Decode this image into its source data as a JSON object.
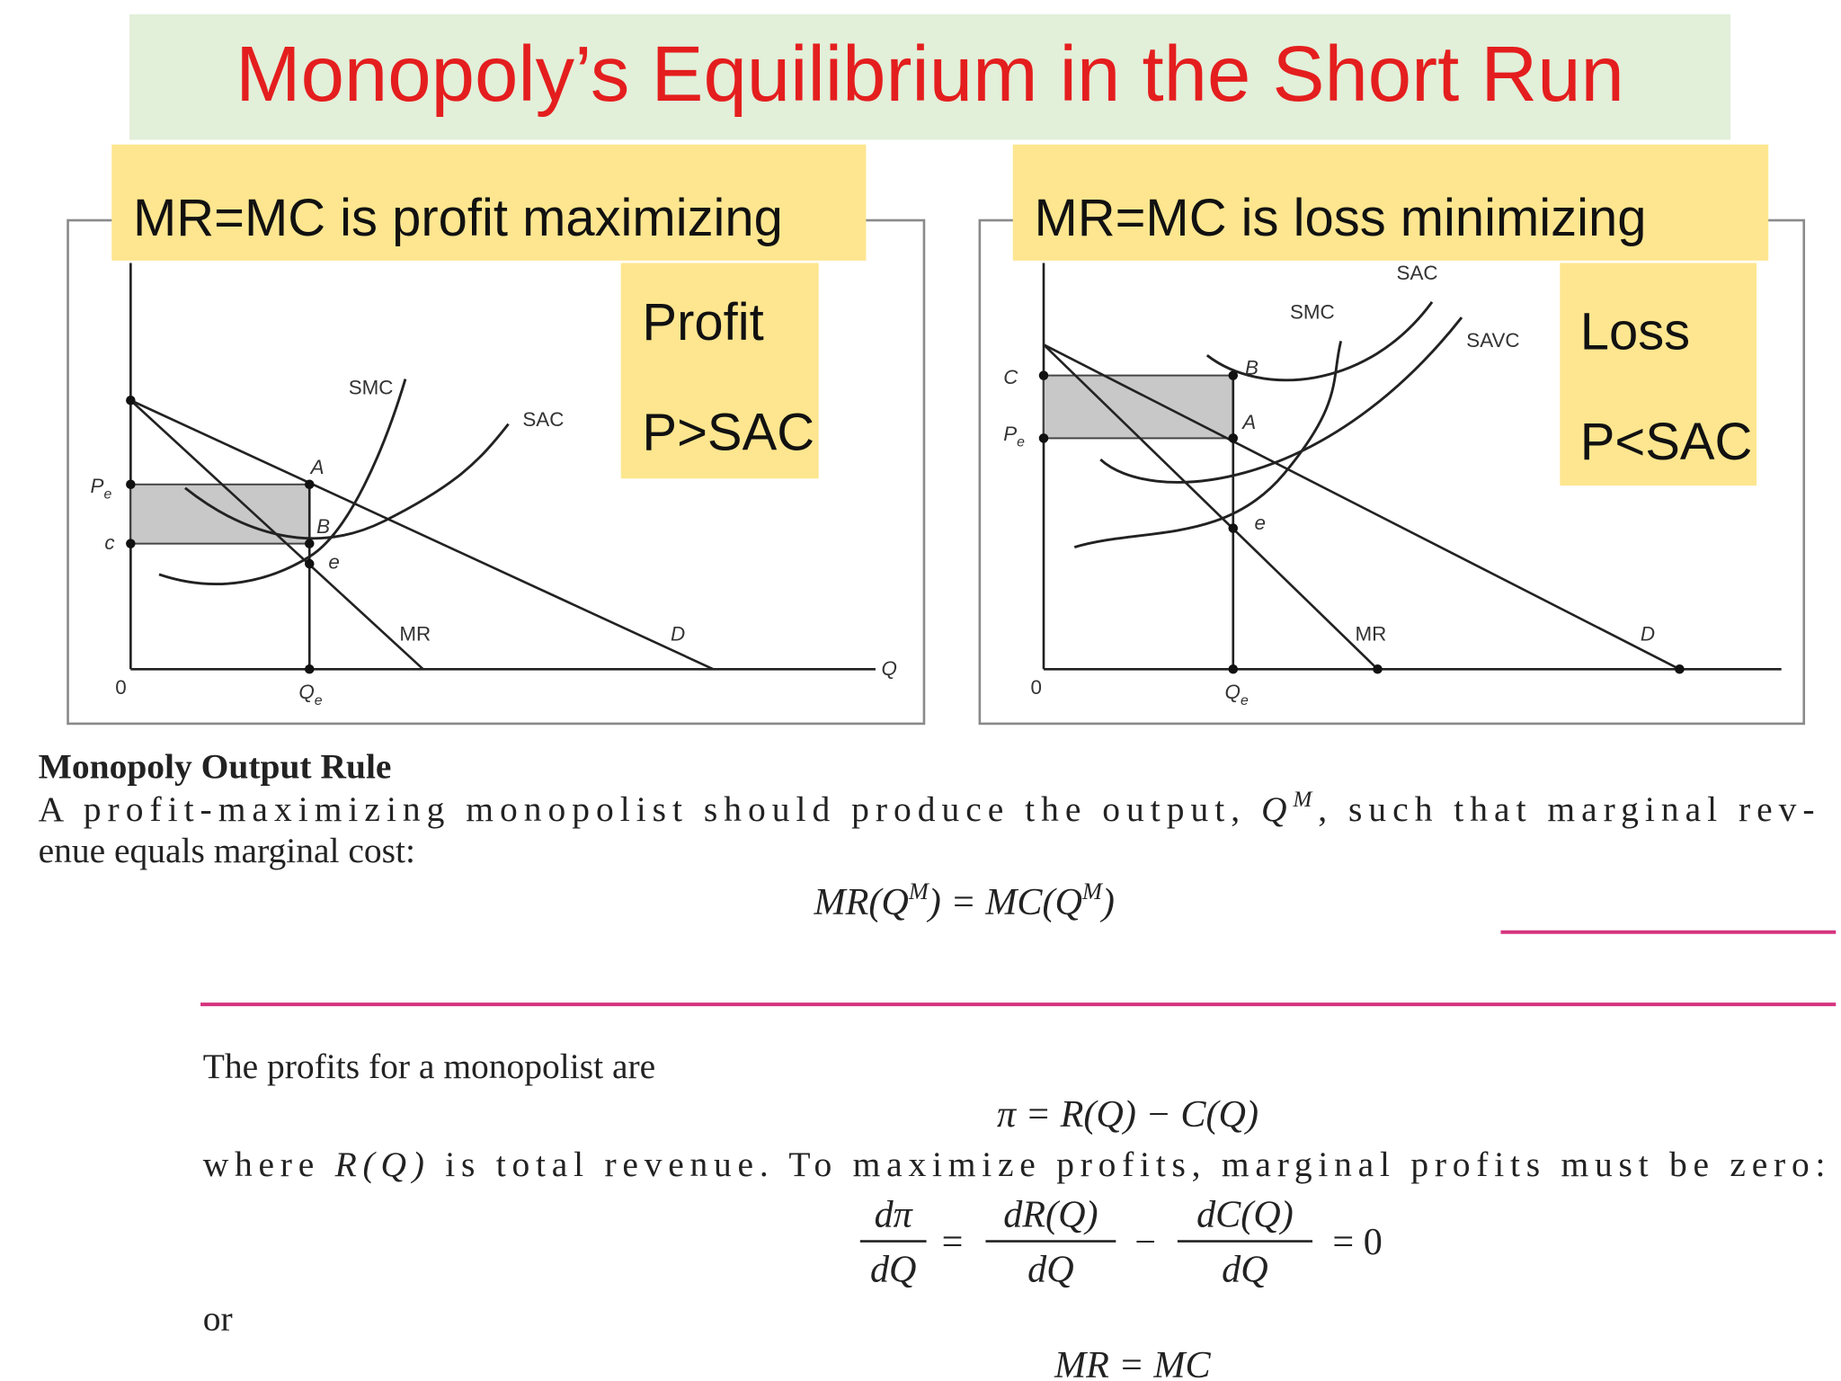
{
  "title": "Monopoly’s Equilibrium in the Short Run",
  "panels": [
    {
      "heading": "MR=MC is profit maximizing",
      "box": [
        "Profit",
        "P>SAC"
      ],
      "labels": [
        "SMC",
        "SAC",
        "A",
        "B",
        "e",
        {
          "text": "P",
          "sub": "e"
        },
        "c",
        "0",
        {
          "text": "Q",
          "sub": "e"
        },
        "Q",
        "MR",
        "D"
      ]
    },
    {
      "heading": "MR=MC is loss minimizing",
      "box": [
        "Loss",
        "P<SAC"
      ],
      "labels": [
        "SAC",
        "SMC",
        "SAVC",
        "B",
        "A",
        "e",
        "C",
        {
          "text": "P",
          "sub": "e"
        },
        "0",
        {
          "text": "Q",
          "sub": "e"
        },
        "MR",
        "D"
      ]
    }
  ],
  "rule": {
    "heading": "Monopoly Output Rule",
    "line1": [
      "A profit-maximizing monopolist should produce the output, ",
      "Q",
      "M",
      ", such that marginal rev-"
    ],
    "line2": "enue equals marginal cost:",
    "equation": [
      "MR(Q",
      "M",
      ") = MC(Q",
      "M",
      ")"
    ]
  },
  "profits": {
    "intro": "The profits for a monopolist are",
    "equation": "π = R(Q) − C(Q)",
    "where": [
      "where ",
      "R(Q)",
      " is total revenue. To maximize profits, marginal profits must be zero:"
    ],
    "derivative": {
      "lhs": {
        "num": "dπ",
        "den": "dQ"
      },
      "eq": "=",
      "t1": {
        "num": "dR(Q)",
        "den": "dQ"
      },
      "minus": "−",
      "t2": {
        "num": "dC(Q)",
        "den": "dQ"
      },
      "rhs": "= 0"
    },
    "or": "or",
    "final": "MR = MC"
  }
}
